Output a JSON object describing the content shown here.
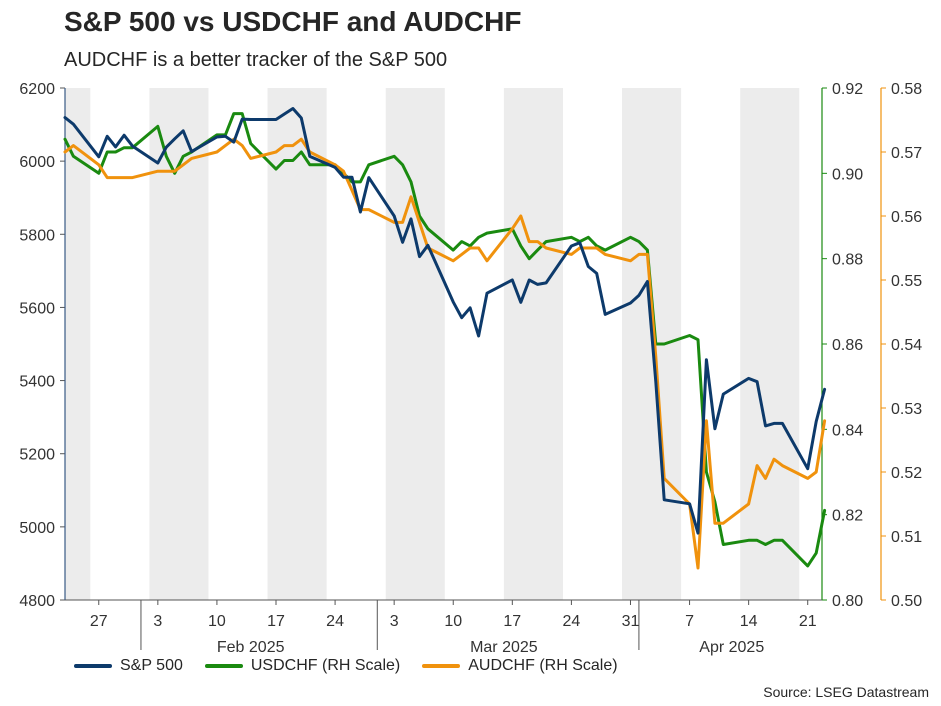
{
  "chart_data": {
    "type": "line",
    "title": "S&P 500 vs USDCHF and AUDCHF",
    "subtitle": "AUDCHF is a better tracker of the S&P 500",
    "source": "Source: LSEG Datastream",
    "x_tick_labels": [
      "27",
      "3",
      "10",
      "17",
      "24",
      "3",
      "10",
      "17",
      "24",
      "31",
      "7",
      "14",
      "21"
    ],
    "month_labels": [
      "Feb 2025",
      "Mar 2025",
      "Apr 2025"
    ],
    "axes": {
      "left": {
        "series": "S&P 500",
        "ylim": [
          4800,
          6200
        ],
        "ticks": [
          "4800",
          "5000",
          "5200",
          "5400",
          "5600",
          "5800",
          "6000",
          "6200"
        ]
      },
      "right1": {
        "series": "USDCHF (RH Scale)",
        "ylim": [
          0.8,
          0.92
        ],
        "ticks": [
          "0.80",
          "0.82",
          "0.84",
          "0.86",
          "0.88",
          "0.90",
          "0.92"
        ]
      },
      "right2": {
        "series": "AUDCHF (RH Scale)",
        "ylim": [
          0.5,
          0.58
        ],
        "ticks": [
          "0.50",
          "0.51",
          "0.52",
          "0.53",
          "0.54",
          "0.55",
          "0.56",
          "0.57",
          "0.58"
        ]
      }
    },
    "week_shading": "alternating grey weekly bands",
    "legend_position": "bottom-left",
    "x": [
      "2025-01-23",
      "2025-01-24",
      "2025-01-27",
      "2025-01-28",
      "2025-01-29",
      "2025-01-30",
      "2025-01-31",
      "2025-02-03",
      "2025-02-04",
      "2025-02-05",
      "2025-02-06",
      "2025-02-07",
      "2025-02-10",
      "2025-02-11",
      "2025-02-12",
      "2025-02-13",
      "2025-02-14",
      "2025-02-17",
      "2025-02-18",
      "2025-02-19",
      "2025-02-20",
      "2025-02-21",
      "2025-02-24",
      "2025-02-25",
      "2025-02-26",
      "2025-02-27",
      "2025-02-28",
      "2025-03-03",
      "2025-03-04",
      "2025-03-05",
      "2025-03-06",
      "2025-03-07",
      "2025-03-10",
      "2025-03-11",
      "2025-03-12",
      "2025-03-13",
      "2025-03-14",
      "2025-03-17",
      "2025-03-18",
      "2025-03-19",
      "2025-03-20",
      "2025-03-21",
      "2025-03-24",
      "2025-03-25",
      "2025-03-26",
      "2025-03-27",
      "2025-03-28",
      "2025-03-31",
      "2025-04-01",
      "2025-04-02",
      "2025-04-03",
      "2025-04-04",
      "2025-04-07",
      "2025-04-08",
      "2025-04-09",
      "2025-04-10",
      "2025-04-11",
      "2025-04-14",
      "2025-04-15",
      "2025-04-16",
      "2025-04-17",
      "2025-04-18",
      "2025-04-21",
      "2025-04-22",
      "2025-04-23"
    ],
    "series": [
      {
        "name": "S&P 500",
        "axis": "left",
        "color": "#0d3a6b",
        "values": [
          6119,
          6101,
          6012,
          6068,
          6039,
          6071,
          6041,
          5995,
          6038,
          6061,
          6083,
          6026,
          6066,
          6068,
          6052,
          6115,
          6114,
          6114,
          6129,
          6144,
          6118,
          6013,
          5983,
          5956,
          5956,
          5861,
          5955,
          5850,
          5778,
          5842,
          5739,
          5770,
          5615,
          5572,
          5599,
          5522,
          5639,
          5675,
          5614,
          5675,
          5663,
          5667,
          5768,
          5777,
          5712,
          5693,
          5581,
          5612,
          5633,
          5671,
          5397,
          5074,
          5063,
          4983,
          5457,
          5268,
          5363,
          5406,
          5397,
          5276,
          5283,
          5283,
          5159,
          5288,
          5376
        ]
      },
      {
        "name": "USDCHF (RH Scale)",
        "axis": "right1",
        "color": "#1a8a10",
        "values": [
          0.908,
          0.904,
          0.9,
          0.905,
          0.905,
          0.906,
          0.906,
          0.911,
          0.904,
          0.9,
          0.904,
          0.905,
          0.909,
          0.909,
          0.914,
          0.914,
          0.907,
          0.901,
          0.903,
          0.903,
          0.905,
          0.902,
          0.902,
          0.9,
          0.898,
          0.898,
          0.902,
          0.904,
          0.902,
          0.898,
          0.89,
          0.887,
          0.882,
          0.884,
          0.883,
          0.885,
          0.886,
          0.887,
          0.883,
          0.88,
          0.882,
          0.884,
          0.885,
          0.884,
          0.885,
          0.883,
          0.882,
          0.885,
          0.884,
          0.882,
          0.86,
          0.86,
          0.862,
          0.861,
          0.83,
          0.823,
          0.813,
          0.814,
          0.814,
          0.813,
          0.814,
          0.814,
          0.808,
          0.811,
          0.821
        ]
      },
      {
        "name": "AUDCHF (RH Scale)",
        "axis": "right2",
        "color": "#f0920d",
        "values": [
          0.57,
          0.571,
          0.568,
          0.566,
          0.566,
          0.566,
          0.566,
          0.567,
          0.567,
          0.567,
          0.568,
          0.569,
          0.57,
          0.571,
          0.572,
          0.571,
          0.569,
          0.57,
          0.571,
          0.571,
          0.572,
          0.57,
          0.568,
          0.567,
          0.564,
          0.561,
          0.561,
          0.559,
          0.559,
          0.563,
          0.559,
          0.555,
          0.553,
          0.554,
          0.555,
          0.555,
          0.553,
          0.558,
          0.56,
          0.556,
          0.556,
          0.555,
          0.554,
          0.555,
          0.555,
          0.555,
          0.554,
          0.553,
          0.554,
          0.554,
          0.538,
          0.519,
          0.515,
          0.505,
          0.528,
          0.512,
          0.512,
          0.515,
          0.521,
          0.519,
          0.522,
          0.521,
          0.519,
          0.52,
          0.528
        ]
      }
    ]
  }
}
